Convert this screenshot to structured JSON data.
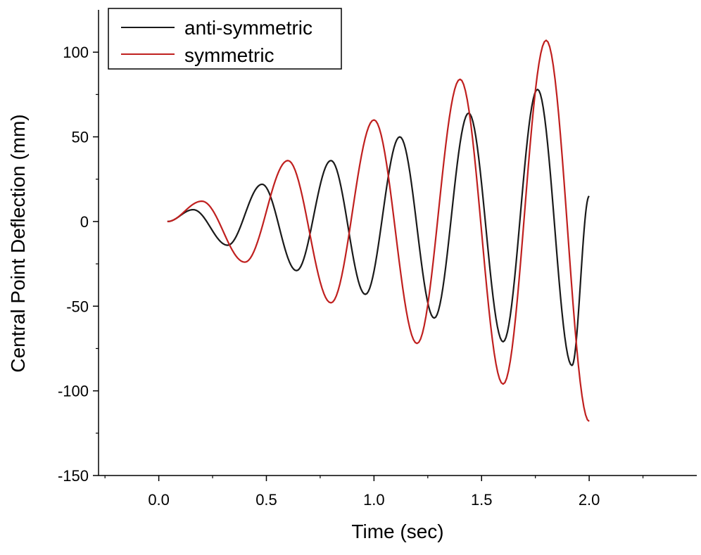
{
  "chart_data": {
    "type": "line",
    "title": "",
    "xlabel": "Time (sec)",
    "ylabel": "Central Point Deflection (mm)",
    "xlim": [
      -0.28,
      2.5
    ],
    "ylim": [
      -150,
      125
    ],
    "xticks": [
      0.0,
      0.5,
      1.0,
      1.5,
      2.0
    ],
    "xtick_labels": [
      "0.0",
      "0.5",
      "1.0",
      "1.5",
      "2.0"
    ],
    "yticks": [
      -150,
      -100,
      -50,
      0,
      50,
      100
    ],
    "ytick_labels": [
      "-150",
      "-100",
      "-50",
      "0",
      "50",
      "100"
    ],
    "grid": false,
    "legend": {
      "placement": "top-left"
    },
    "series": [
      {
        "name": "anti-symmetric",
        "color": "#1a1a1a",
        "x": [
          0.04,
          0.16,
          0.32,
          0.48,
          0.64,
          0.8,
          0.96,
          1.12,
          1.28,
          1.44,
          1.6,
          1.76,
          1.92,
          2.0
        ],
        "y": [
          0,
          7,
          -14,
          22,
          -29,
          36,
          -43,
          50,
          -57,
          64,
          -71,
          78,
          -85,
          15
        ]
      },
      {
        "name": "symmetric",
        "color": "#c0201f",
        "x": [
          0.04,
          0.2,
          0.4,
          0.6,
          0.8,
          1.0,
          1.2,
          1.4,
          1.6,
          1.8,
          2.0
        ],
        "y": [
          0,
          12,
          -24,
          36,
          -48,
          60,
          -72,
          84,
          -96,
          107,
          -118
        ]
      }
    ]
  }
}
